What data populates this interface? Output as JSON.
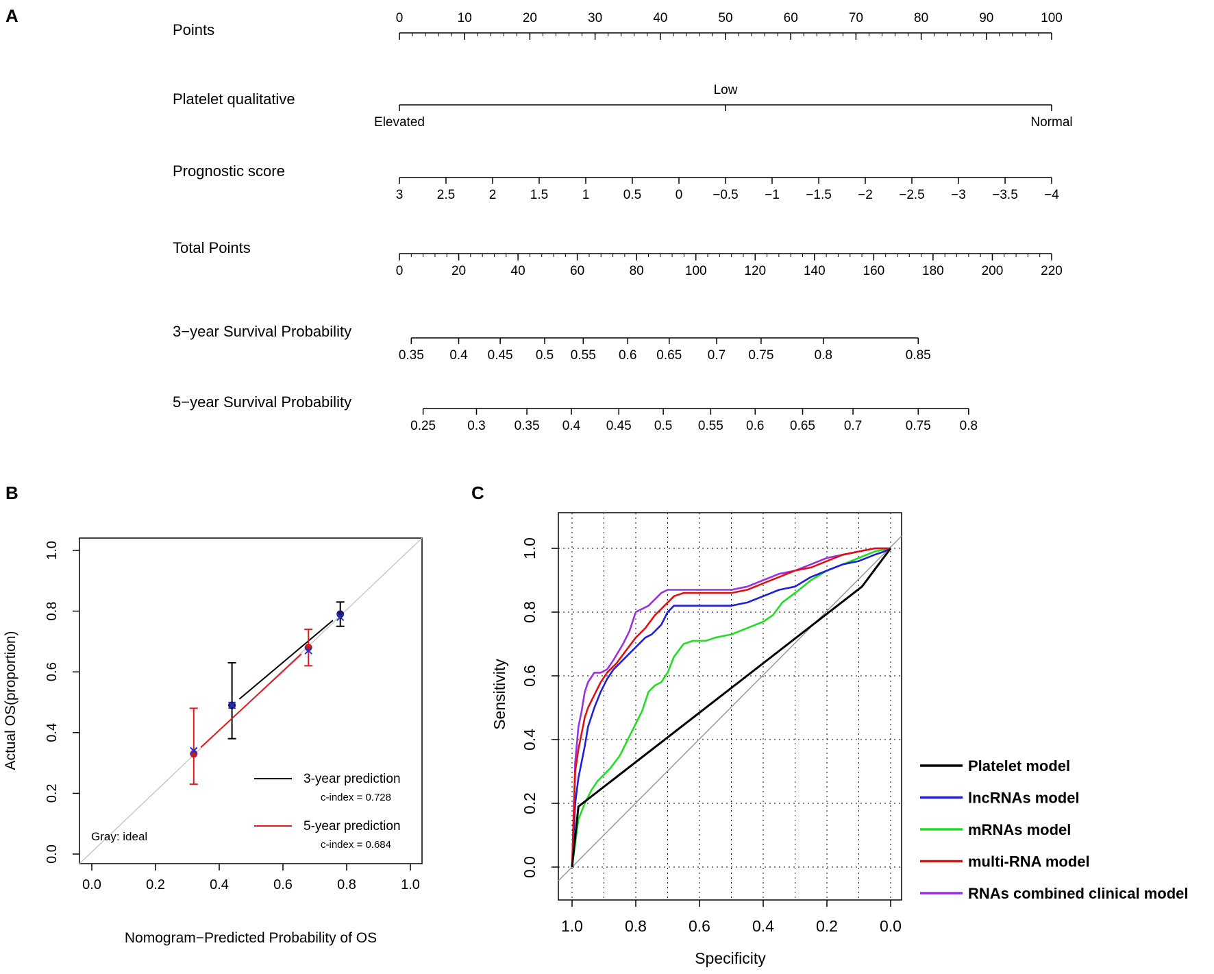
{
  "panel_labels": [
    "A",
    "B",
    "C"
  ],
  "chart_data": [
    {
      "type": "nomogram",
      "panel": "A",
      "scales": [
        {
          "name": "Points",
          "kind": "points",
          "labels": [
            "0",
            "10",
            "20",
            "30",
            "40",
            "50",
            "60",
            "70",
            "80",
            "90",
            "100"
          ],
          "points": [
            0,
            10,
            20,
            30,
            40,
            50,
            60,
            70,
            80,
            90,
            100
          ],
          "minor_step": 2
        },
        {
          "name": "Platelet qualitative",
          "kind": "categorical",
          "labels": [
            "Elevated",
            "Low",
            "Normal"
          ],
          "points": [
            0,
            50,
            100
          ],
          "label_side": [
            "below",
            "above",
            "below"
          ]
        },
        {
          "name": "Prognostic score",
          "kind": "numeric",
          "labels": [
            "3",
            "2.5",
            "2",
            "1.5",
            "1",
            "0.5",
            "0",
            "−0.5",
            "−1",
            "−1.5",
            "−2",
            "−2.5",
            "−3",
            "−3.5",
            "−4"
          ],
          "points": [
            0,
            7.14,
            14.29,
            21.43,
            28.57,
            35.71,
            42.86,
            50,
            57.14,
            64.29,
            71.43,
            78.57,
            85.71,
            92.86,
            100
          ]
        },
        {
          "name": "Total Points",
          "kind": "total",
          "labels": [
            "0",
            "20",
            "40",
            "60",
            "80",
            "100",
            "120",
            "140",
            "160",
            "180",
            "200",
            "220"
          ],
          "values": [
            0,
            20,
            40,
            60,
            80,
            100,
            120,
            140,
            160,
            180,
            200,
            220
          ],
          "minor_step": 4
        },
        {
          "name": "3−year Survival Probability",
          "kind": "probability",
          "labels": [
            "0.35",
            "0.4",
            "0.45",
            "0.5",
            "0.55",
            "0.6",
            "0.65",
            "0.7",
            "0.75",
            "0.8",
            "0.85"
          ],
          "total_points": [
            4,
            20,
            34,
            49,
            62,
            77,
            91,
            107,
            122,
            143,
            175
          ]
        },
        {
          "name": "5−year Survival Probability",
          "kind": "probability",
          "labels": [
            "0.25",
            "0.3",
            "0.35",
            "0.4",
            "0.45",
            "0.5",
            "0.55",
            "0.6",
            "0.65",
            "0.7",
            "0.75",
            "0.8"
          ],
          "total_points": [
            8,
            26,
            43,
            58,
            74,
            89,
            105,
            120,
            136,
            153,
            175,
            192
          ]
        }
      ]
    },
    {
      "type": "scatter",
      "panel": "B",
      "xlabel": "Nomogram−Predicted Probability of OS",
      "ylabel": "Actual OS(proportion)",
      "xlim": [
        0,
        1
      ],
      "ylim": [
        0,
        1
      ],
      "ticks": [
        0.0,
        0.2,
        0.4,
        0.6,
        0.8,
        1.0
      ],
      "tick_labels": [
        "0.0",
        "0.2",
        "0.4",
        "0.6",
        "0.8",
        "1.0"
      ],
      "ideal_label": "Gray: ideal",
      "series": [
        {
          "name": "3-year prediction",
          "legend": "3-year prediction",
          "c_index": "c-index = 0.728",
          "color": "#000000",
          "x": [
            0.44,
            0.78
          ],
          "y": [
            0.49,
            0.79
          ],
          "lower": [
            0.38,
            0.75
          ],
          "upper": [
            0.63,
            0.83
          ],
          "corrected_x": [
            0.44,
            0.78
          ],
          "corrected_y": [
            0.49,
            0.78
          ]
        },
        {
          "name": "5-year prediction",
          "legend": "5-year prediction",
          "c_index": "c-index = 0.684",
          "color": "#e31a1c",
          "x": [
            0.32,
            0.68
          ],
          "y": [
            0.33,
            0.68
          ],
          "lower": [
            0.23,
            0.62
          ],
          "upper": [
            0.48,
            0.74
          ],
          "corrected_x": [
            0.32,
            0.68
          ],
          "corrected_y": [
            0.34,
            0.67
          ]
        }
      ]
    },
    {
      "type": "line",
      "panel": "C",
      "xlabel": "Specificity",
      "ylabel": "Sensitivity",
      "xlim": [
        1,
        0
      ],
      "ylim": [
        0,
        1
      ],
      "ticks": [
        1.0,
        0.8,
        0.6,
        0.4,
        0.2,
        0.0
      ],
      "tick_labels": [
        "1.0",
        "0.8",
        "0.6",
        "0.4",
        "0.2",
        "0.0"
      ],
      "y_ticks": [
        0.0,
        0.2,
        0.4,
        0.6,
        0.8,
        1.0
      ],
      "y_tick_labels": [
        "0.0",
        "0.2",
        "0.4",
        "0.6",
        "0.8",
        "1.0"
      ],
      "grid": true,
      "series": [
        {
          "name": "Platelet model",
          "color": "#000000",
          "specificity": [
            1.0,
            0.98,
            0.09,
            0.0
          ],
          "sensitivity": [
            0.0,
            0.19,
            0.88,
            1.0
          ]
        },
        {
          "name": "lncRNAs model",
          "color": "#1f1fd6",
          "specificity": [
            1.0,
            0.99,
            0.98,
            0.97,
            0.96,
            0.95,
            0.93,
            0.91,
            0.89,
            0.87,
            0.84,
            0.8,
            0.77,
            0.75,
            0.72,
            0.7,
            0.68,
            0.66,
            0.6,
            0.5,
            0.45,
            0.4,
            0.35,
            0.3,
            0.25,
            0.2,
            0.15,
            0.1,
            0.05,
            0.02,
            0.0
          ],
          "sensitivity": [
            0.0,
            0.2,
            0.28,
            0.33,
            0.38,
            0.44,
            0.5,
            0.55,
            0.59,
            0.62,
            0.65,
            0.69,
            0.72,
            0.73,
            0.76,
            0.8,
            0.82,
            0.82,
            0.82,
            0.82,
            0.83,
            0.85,
            0.87,
            0.88,
            0.91,
            0.93,
            0.95,
            0.96,
            0.98,
            0.99,
            1.0
          ]
        },
        {
          "name": "mRNAs model",
          "color": "#22dd22",
          "specificity": [
            1.0,
            0.98,
            0.96,
            0.94,
            0.92,
            0.9,
            0.88,
            0.85,
            0.82,
            0.8,
            0.78,
            0.76,
            0.74,
            0.72,
            0.7,
            0.68,
            0.65,
            0.62,
            0.58,
            0.55,
            0.5,
            0.45,
            0.4,
            0.37,
            0.34,
            0.3,
            0.25,
            0.2,
            0.15,
            0.1,
            0.05,
            0.0
          ],
          "sensitivity": [
            0.0,
            0.15,
            0.2,
            0.24,
            0.27,
            0.29,
            0.31,
            0.35,
            0.41,
            0.45,
            0.49,
            0.55,
            0.57,
            0.58,
            0.61,
            0.66,
            0.7,
            0.71,
            0.71,
            0.72,
            0.73,
            0.75,
            0.77,
            0.79,
            0.83,
            0.86,
            0.9,
            0.93,
            0.95,
            0.97,
            0.99,
            1.0
          ]
        },
        {
          "name": "multi-RNA model",
          "color": "#e01010",
          "specificity": [
            1.0,
            0.99,
            0.98,
            0.97,
            0.96,
            0.95,
            0.93,
            0.91,
            0.89,
            0.86,
            0.83,
            0.8,
            0.77,
            0.74,
            0.71,
            0.68,
            0.65,
            0.6,
            0.5,
            0.45,
            0.4,
            0.35,
            0.3,
            0.25,
            0.2,
            0.15,
            0.1,
            0.05,
            0.0
          ],
          "sensitivity": [
            0.0,
            0.3,
            0.37,
            0.42,
            0.47,
            0.5,
            0.54,
            0.58,
            0.61,
            0.64,
            0.68,
            0.72,
            0.75,
            0.79,
            0.82,
            0.85,
            0.86,
            0.86,
            0.86,
            0.87,
            0.89,
            0.91,
            0.93,
            0.94,
            0.96,
            0.98,
            0.99,
            1.0,
            1.0
          ]
        },
        {
          "name": "RNAs combined clinical model",
          "color": "#9b30e0",
          "specificity": [
            1.0,
            0.99,
            0.98,
            0.97,
            0.96,
            0.95,
            0.93,
            0.91,
            0.89,
            0.87,
            0.84,
            0.82,
            0.8,
            0.78,
            0.76,
            0.74,
            0.72,
            0.7,
            0.67,
            0.6,
            0.5,
            0.45,
            0.4,
            0.35,
            0.3,
            0.25,
            0.2,
            0.15,
            0.1,
            0.05,
            0.0
          ],
          "sensitivity": [
            0.0,
            0.33,
            0.44,
            0.49,
            0.55,
            0.58,
            0.61,
            0.61,
            0.62,
            0.65,
            0.7,
            0.74,
            0.8,
            0.81,
            0.82,
            0.84,
            0.86,
            0.87,
            0.87,
            0.87,
            0.87,
            0.88,
            0.9,
            0.92,
            0.93,
            0.95,
            0.97,
            0.98,
            0.99,
            1.0,
            1.0
          ]
        }
      ]
    }
  ]
}
